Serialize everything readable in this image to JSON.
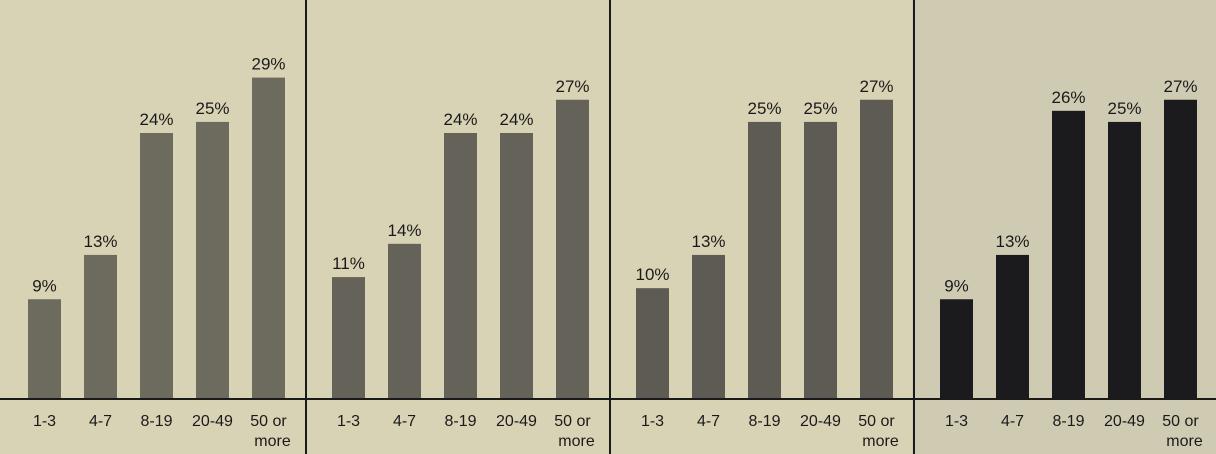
{
  "chart_data": [
    {
      "type": "bar",
      "categories": [
        "1-3",
        "4-7",
        "8-19",
        "20-49",
        "50 or more"
      ],
      "values": [
        9,
        13,
        24,
        25,
        29
      ],
      "value_labels": [
        "9%",
        "13%",
        "24%",
        "25%",
        "29%"
      ],
      "ylim": [
        0,
        36
      ],
      "grid": false,
      "bar_color": "#6d6a5e"
    },
    {
      "type": "bar",
      "categories": [
        "1-3",
        "4-7",
        "8-19",
        "20-49",
        "50 or more"
      ],
      "values": [
        11,
        14,
        24,
        24,
        27
      ],
      "value_labels": [
        "11%",
        "14%",
        "24%",
        "24%",
        "27%"
      ],
      "ylim": [
        0,
        36
      ],
      "grid": false,
      "bar_color": "#65625a"
    },
    {
      "type": "bar",
      "categories": [
        "1-3",
        "4-7",
        "8-19",
        "20-49",
        "50 or more"
      ],
      "values": [
        10,
        13,
        25,
        25,
        27
      ],
      "value_labels": [
        "10%",
        "13%",
        "25%",
        "25%",
        "27%"
      ],
      "ylim": [
        0,
        36
      ],
      "grid": false,
      "bar_color": "#5e5b55"
    },
    {
      "type": "bar",
      "categories": [
        "1-3",
        "4-7",
        "8-19",
        "20-49",
        "50 or more"
      ],
      "values": [
        9,
        13,
        26,
        25,
        27
      ],
      "value_labels": [
        "9%",
        "13%",
        "26%",
        "25%",
        "27%"
      ],
      "ylim": [
        0,
        36
      ],
      "grid": false,
      "bar_color": "#1b1a1c"
    }
  ]
}
